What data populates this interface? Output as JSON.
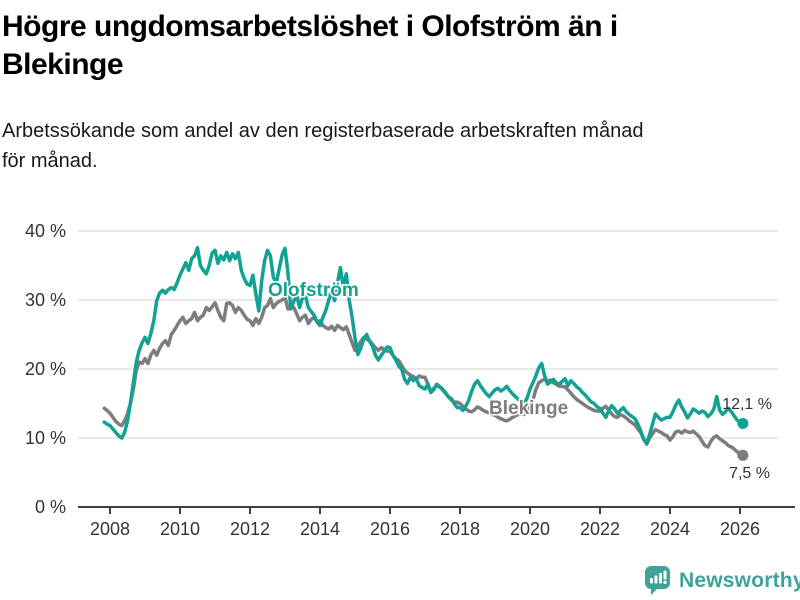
{
  "title_lines": [
    "Högre ungdomsarbetslöshet i Olofström än i",
    "Blekinge"
  ],
  "subtitle_lines": [
    "Arbetssökande som andel av den registerbaserade arbetskraften månad",
    "för månad."
  ],
  "footer": {
    "brand": "Newsworthy"
  },
  "colors": {
    "olofstrom": "#12a294",
    "blekinge": "#7d7d7d",
    "grid": "#dcdcdc",
    "axis": "#404040",
    "tick_text": "#333333",
    "logo": "#3fa39a"
  },
  "chart_data": {
    "type": "line",
    "title": "Högre ungdomsarbetslöshet i Olofström än i Blekinge",
    "xlabel": "",
    "ylabel": "Arbetssökande som andel av den registerbaserade arbetskraften",
    "unit": "%",
    "frequency": "monthly",
    "x_start_year": 2007,
    "x_start_month": 11,
    "x_ticks": [
      2008,
      2010,
      2012,
      2014,
      2016,
      2018,
      2020,
      2022,
      2024,
      2026
    ],
    "y_ticks": [
      0,
      10,
      20,
      30,
      40
    ],
    "y_tick_labels": [
      "0 %",
      "10 %",
      "20 %",
      "30 %",
      "40 %"
    ],
    "ylim": [
      0,
      41.5
    ],
    "grid": "horizontal",
    "legend_position": "inline-labels",
    "series": [
      {
        "name": "Olofström",
        "color": "#12a294",
        "end_label": "12,1 %",
        "last_value": 12.1,
        "values": [
          12.3,
          12.0,
          11.8,
          11.3,
          10.8,
          10.3,
          10.0,
          10.8,
          12.5,
          15.0,
          18.0,
          21.0,
          22.7,
          23.8,
          24.6,
          23.7,
          25.1,
          27.0,
          29.9,
          31.0,
          31.4,
          31.0,
          31.5,
          31.8,
          31.5,
          32.5,
          33.6,
          34.5,
          35.4,
          34.3,
          36.0,
          36.4,
          37.6,
          35.0,
          34.3,
          33.8,
          35.0,
          36.8,
          37.2,
          35.3,
          36.4,
          35.8,
          36.9,
          35.7,
          36.7,
          36.0,
          36.9,
          34.3,
          33.1,
          32.3,
          32.1,
          33.6,
          30.9,
          28.4,
          32.8,
          35.7,
          37.2,
          36.4,
          33.3,
          32.5,
          34.5,
          36.5,
          37.5,
          34.0,
          28.7,
          29.8,
          30.7,
          28.9,
          30.3,
          30.7,
          28.9,
          28.3,
          27.8,
          26.8,
          26.3,
          27.5,
          28.5,
          30.0,
          31.4,
          29.9,
          32.5,
          34.7,
          31.8,
          33.8,
          30.0,
          27.5,
          24.5,
          22.1,
          23.0,
          24.4,
          25.0,
          24.0,
          23.3,
          22.0,
          21.3,
          22.0,
          22.6,
          23.2,
          23.1,
          22.0,
          21.3,
          20.4,
          20.0,
          18.5,
          17.9,
          18.8,
          18.3,
          18.6,
          17.6,
          17.3,
          17.1,
          17.8,
          16.6,
          17.2,
          17.6,
          17.4,
          17.0,
          16.5,
          16.0,
          15.7,
          15.0,
          14.4,
          14.4,
          14.0,
          14.6,
          15.5,
          16.8,
          17.8,
          18.3,
          17.6,
          17.0,
          16.4,
          16.0,
          16.5,
          17.0,
          17.2,
          16.8,
          17.1,
          17.5,
          16.9,
          16.4,
          16.0,
          15.6,
          15.2,
          15.0,
          15.8,
          17.1,
          18.0,
          19.0,
          20.2,
          20.8,
          19.0,
          17.8,
          18.1,
          18.5,
          18.0,
          17.8,
          18.2,
          18.6,
          17.6,
          18.3,
          17.9,
          17.4,
          17.1,
          16.6,
          16.2,
          15.7,
          15.2,
          15.0,
          14.5,
          14.3,
          13.6,
          13.0,
          14.0,
          14.7,
          14.2,
          13.6,
          14.0,
          14.4,
          13.8,
          13.4,
          13.1,
          12.8,
          12.0,
          11.0,
          9.8,
          9.3,
          10.5,
          12.0,
          13.5,
          13.0,
          12.6,
          12.8,
          13.0,
          13.0,
          13.8,
          14.8,
          15.5,
          14.5,
          13.8,
          12.9,
          13.5,
          14.2,
          13.9,
          13.6,
          13.9,
          13.7,
          13.1,
          13.5,
          14.2,
          16.0,
          14.0,
          13.4,
          13.8,
          14.3,
          13.8,
          13.2,
          12.6,
          12.3,
          12.1
        ]
      },
      {
        "name": "Blekinge",
        "color": "#7d7d7d",
        "end_label": "7,5 %",
        "last_value": 7.5,
        "values": [
          14.3,
          14.0,
          13.6,
          13.0,
          12.4,
          12.0,
          11.8,
          12.5,
          13.5,
          15.0,
          17.0,
          19.8,
          21.0,
          20.8,
          21.5,
          20.8,
          22.0,
          22.7,
          22.0,
          23.0,
          23.7,
          24.1,
          23.4,
          25.0,
          25.6,
          26.3,
          27.0,
          27.5,
          26.6,
          27.0,
          27.3,
          28.2,
          27.0,
          27.5,
          27.8,
          28.9,
          28.5,
          29.0,
          29.6,
          28.5,
          27.5,
          27.0,
          29.5,
          29.6,
          29.2,
          28.2,
          28.9,
          28.5,
          27.8,
          27.2,
          27.0,
          26.3,
          27.3,
          26.6,
          27.5,
          28.9,
          29.2,
          30.2,
          28.9,
          29.5,
          29.8,
          30.0,
          30.4,
          28.7,
          29.2,
          28.9,
          28.0,
          27.0,
          27.5,
          27.8,
          26.6,
          27.2,
          27.5,
          26.8,
          27.0,
          26.3,
          26.0,
          25.8,
          26.2,
          25.6,
          26.3,
          26.0,
          25.7,
          26.1,
          25.0,
          23.8,
          22.7,
          23.3,
          24.0,
          24.6,
          24.3,
          24.1,
          23.6,
          23.1,
          22.7,
          23.1,
          22.8,
          22.6,
          22.6,
          22.0,
          21.5,
          21.2,
          20.5,
          19.8,
          19.4,
          19.1,
          18.9,
          18.6,
          19.0,
          18.8,
          18.8,
          17.8,
          16.6,
          17.0,
          17.8,
          17.5,
          17.1,
          16.6,
          16.0,
          15.5,
          15.2,
          15.2,
          15.0,
          14.6,
          14.2,
          13.9,
          13.8,
          14.1,
          14.5,
          14.3,
          14.0,
          13.8,
          13.6,
          13.4,
          13.3,
          13.0,
          12.8,
          12.6,
          12.5,
          12.7,
          13.0,
          13.2,
          13.4,
          13.5,
          13.4,
          13.6,
          14.5,
          15.5,
          17.0,
          18.0,
          18.3,
          18.5,
          18.2,
          18.4,
          18.0,
          17.8,
          17.5,
          17.5,
          17.4,
          17.0,
          16.5,
          16.0,
          15.6,
          15.3,
          15.0,
          14.7,
          14.4,
          14.2,
          14.0,
          13.9,
          13.9,
          14.3,
          14.6,
          14.0,
          13.5,
          13.1,
          13.0,
          13.4,
          13.2,
          12.9,
          12.5,
          12.2,
          11.9,
          11.3,
          10.8,
          9.8,
          9.1,
          10.0,
          10.6,
          11.2,
          11.0,
          10.8,
          10.5,
          10.3,
          9.7,
          10.2,
          10.9,
          11.0,
          10.7,
          11.1,
          10.9,
          10.8,
          11.0,
          10.6,
          10.2,
          9.5,
          8.9,
          8.7,
          9.5,
          10.1,
          10.3,
          9.9,
          9.6,
          9.3,
          8.9,
          8.7,
          8.4,
          8.0,
          7.8,
          7.5
        ]
      }
    ]
  }
}
